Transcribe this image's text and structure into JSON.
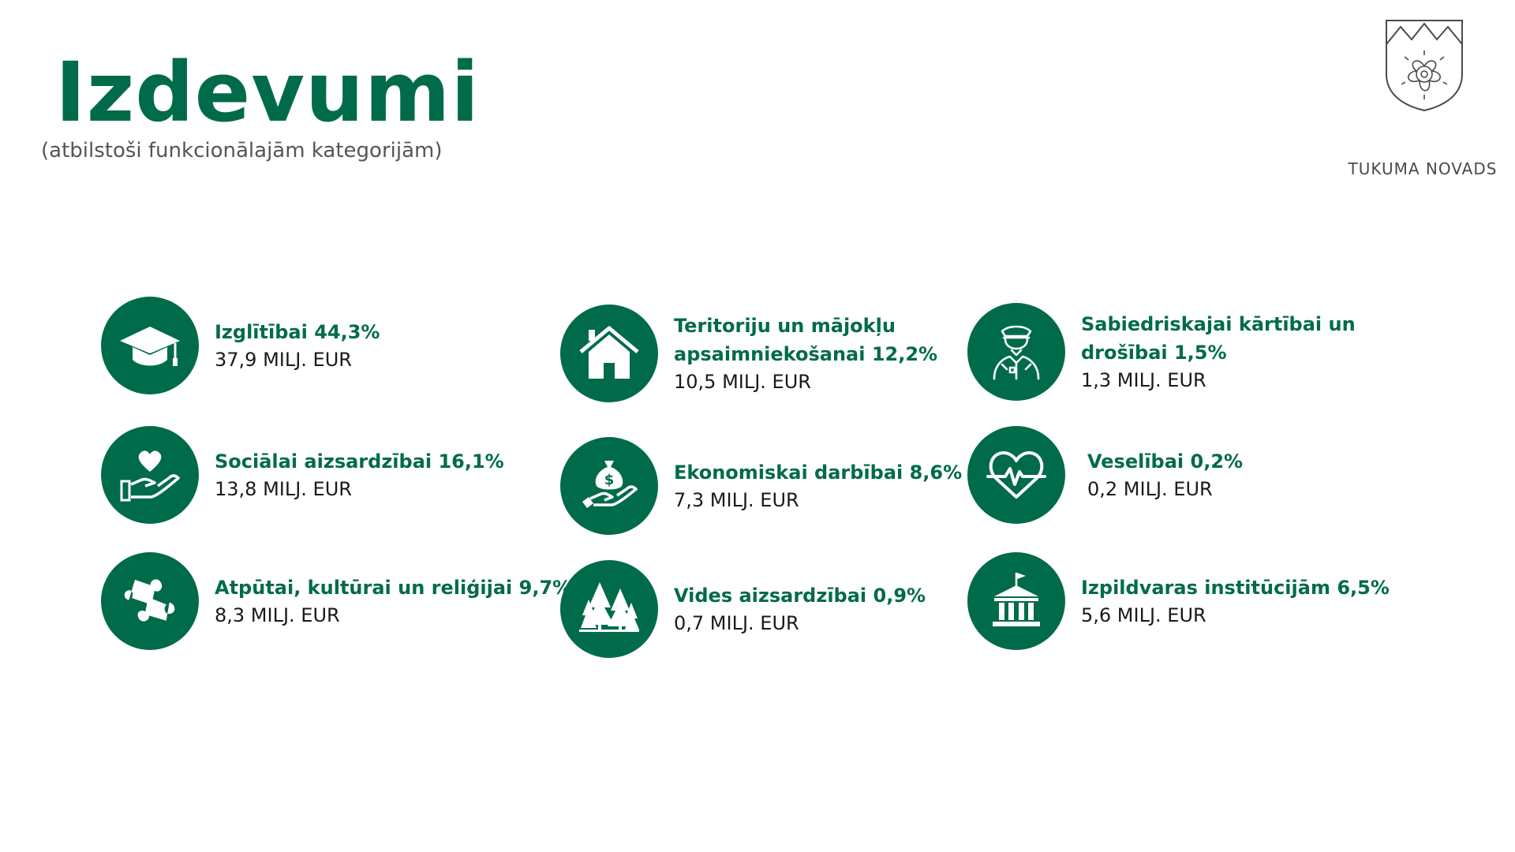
{
  "header": {
    "title": "Izdevumi",
    "subtitle": "(atbilstoši funkcionālajām kategorijām)"
  },
  "logo": {
    "text": "TUKUMA NOVADS",
    "icon": "coat-of-arms-rose-icon"
  },
  "accent_color": "#006b4a",
  "items": [
    {
      "label": "Izglītībai 44,3%",
      "amount": "37,9 MILJ. EUR",
      "icon": "graduation-cap-icon"
    },
    {
      "label": "Sociālai aizsardzībai 16,1%",
      "amount": "13,8 MILJ. EUR",
      "icon": "heart-hand-icon"
    },
    {
      "label": "Atpūtai, kultūrai un reliģijai 9,7%",
      "amount": "8,3 MILJ. EUR",
      "icon": "puzzle-icon"
    },
    {
      "label_line1": "Teritoriju un mājokļu",
      "label_line2": "apsaimniekošanai 12,2%",
      "amount": "10,5 MILJ. EUR",
      "icon": "house-icon"
    },
    {
      "label": "Ekonomiskai darbībai 8,6%",
      "amount": "7,3 MILJ. EUR",
      "icon": "money-bag-hand-icon"
    },
    {
      "label": "Vides aizsardzībai 0,9%",
      "amount": "0,7 MILJ. EUR",
      "icon": "trees-icon"
    },
    {
      "label_line1": "Sabiedriskajai kārtībai un",
      "label_line2": "drošībai 1,5%",
      "amount": "1,3 MILJ. EUR",
      "icon": "police-officer-icon"
    },
    {
      "label": "Veselībai 0,2%",
      "amount": "0,2 MILJ. EUR",
      "icon": "heartbeat-icon"
    },
    {
      "label": "Izpildvaras institūcijām 6,5%",
      "amount": "5,6 MILJ. EUR",
      "icon": "government-building-icon"
    }
  ]
}
